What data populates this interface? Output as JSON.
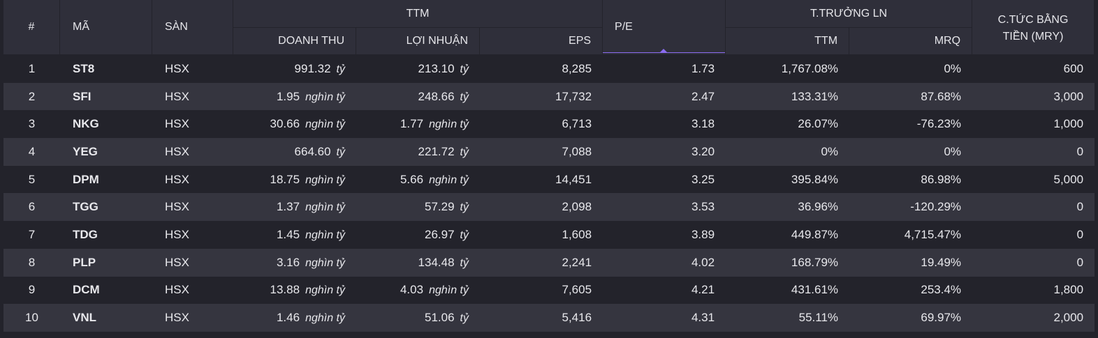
{
  "headers": {
    "rank": "#",
    "code": "MÃ",
    "exchange": "SÀN",
    "ttm_group": "TTM",
    "revenue": "DOANH THU",
    "profit": "LỢI NHUẬN",
    "eps": "EPS",
    "pe": "P/E",
    "growth_group": "T.TRƯỞNG LN",
    "growth_ttm": "TTM",
    "growth_mrq": "MRQ",
    "dividend_line1": "C.TỨC BẰNG",
    "dividend_line2": "TIỀN (MRY)"
  },
  "sort": {
    "column": "P/E",
    "direction": "ascending",
    "accent": "#8b6cf0"
  },
  "rows": [
    {
      "rank": "1",
      "code": "ST8",
      "exchange": "HSX",
      "revenue": "991.32",
      "revenue_unit": "tỷ",
      "profit": "213.10",
      "profit_unit": "tỷ",
      "eps": "8,285",
      "pe": "1.73",
      "growth_ttm": "1,767.08%",
      "growth_mrq": "0%",
      "dividend": "600"
    },
    {
      "rank": "2",
      "code": "SFI",
      "exchange": "HSX",
      "revenue": "1.95",
      "revenue_unit": "nghìn tỷ",
      "profit": "248.66",
      "profit_unit": "tỷ",
      "eps": "17,732",
      "pe": "2.47",
      "growth_ttm": "133.31%",
      "growth_mrq": "87.68%",
      "dividend": "3,000"
    },
    {
      "rank": "3",
      "code": "NKG",
      "exchange": "HSX",
      "revenue": "30.66",
      "revenue_unit": "nghìn tỷ",
      "profit": "1.77",
      "profit_unit": "nghìn tỷ",
      "eps": "6,713",
      "pe": "3.18",
      "growth_ttm": "26.07%",
      "growth_mrq": "-76.23%",
      "dividend": "1,000"
    },
    {
      "rank": "4",
      "code": "YEG",
      "exchange": "HSX",
      "revenue": "664.60",
      "revenue_unit": "tỷ",
      "profit": "221.72",
      "profit_unit": "tỷ",
      "eps": "7,088",
      "pe": "3.20",
      "growth_ttm": "0%",
      "growth_mrq": "0%",
      "dividend": "0"
    },
    {
      "rank": "5",
      "code": "DPM",
      "exchange": "HSX",
      "revenue": "18.75",
      "revenue_unit": "nghìn tỷ",
      "profit": "5.66",
      "profit_unit": "nghìn tỷ",
      "eps": "14,451",
      "pe": "3.25",
      "growth_ttm": "395.84%",
      "growth_mrq": "86.98%",
      "dividend": "5,000"
    },
    {
      "rank": "6",
      "code": "TGG",
      "exchange": "HSX",
      "revenue": "1.37",
      "revenue_unit": "nghìn tỷ",
      "profit": "57.29",
      "profit_unit": "tỷ",
      "eps": "2,098",
      "pe": "3.53",
      "growth_ttm": "36.96%",
      "growth_mrq": "-120.29%",
      "dividend": "0"
    },
    {
      "rank": "7",
      "code": "TDG",
      "exchange": "HSX",
      "revenue": "1.45",
      "revenue_unit": "nghìn tỷ",
      "profit": "26.97",
      "profit_unit": "tỷ",
      "eps": "1,608",
      "pe": "3.89",
      "growth_ttm": "449.87%",
      "growth_mrq": "4,715.47%",
      "dividend": "0"
    },
    {
      "rank": "8",
      "code": "PLP",
      "exchange": "HSX",
      "revenue": "3.16",
      "revenue_unit": "nghìn tỷ",
      "profit": "134.48",
      "profit_unit": "tỷ",
      "eps": "2,241",
      "pe": "4.02",
      "growth_ttm": "168.79%",
      "growth_mrq": "19.49%",
      "dividend": "0"
    },
    {
      "rank": "9",
      "code": "DCM",
      "exchange": "HSX",
      "revenue": "13.88",
      "revenue_unit": "nghìn tỷ",
      "profit": "4.03",
      "profit_unit": "nghìn tỷ",
      "eps": "7,605",
      "pe": "4.21",
      "growth_ttm": "431.61%",
      "growth_mrq": "253.4%",
      "dividend": "1,800"
    },
    {
      "rank": "10",
      "code": "VNL",
      "exchange": "HSX",
      "revenue": "1.46",
      "revenue_unit": "nghìn tỷ",
      "profit": "51.06",
      "profit_unit": "tỷ",
      "eps": "5,416",
      "pe": "4.31",
      "growth_ttm": "55.11%",
      "growth_mrq": "69.97%",
      "dividend": "2,000"
    }
  ]
}
